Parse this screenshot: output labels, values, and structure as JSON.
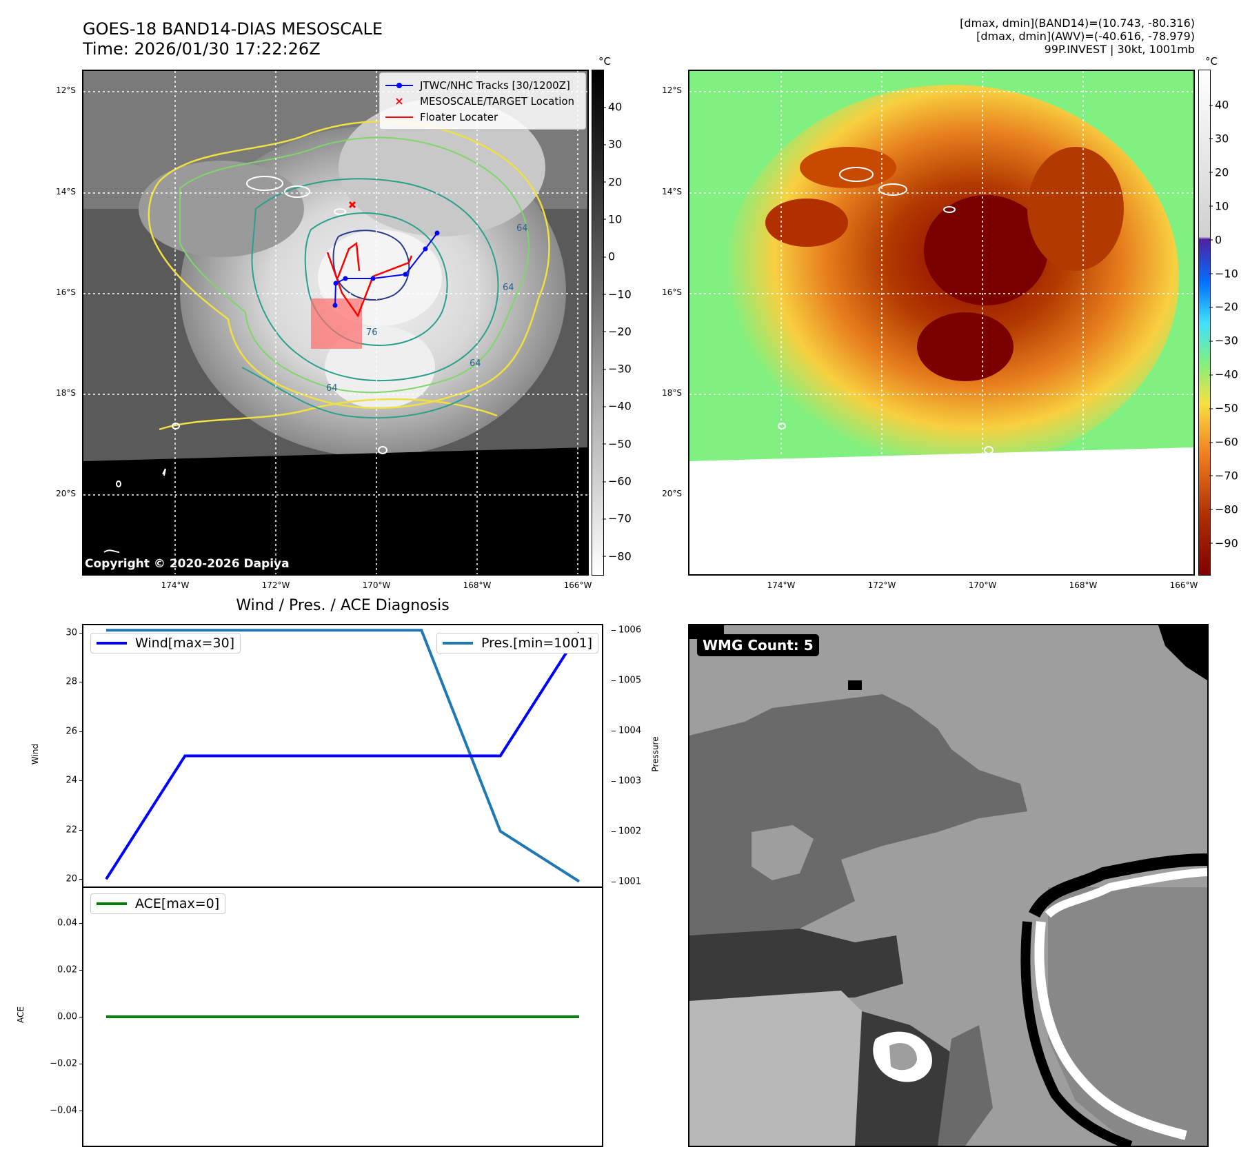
{
  "header": {
    "title_line1": "GOES-18 BAND14-DIAS MESOSCALE",
    "title_line2": "Time: 2026/01/30 17:22:26Z",
    "info_line1": "[dmax, dmin](BAND14)=(10.743, -80.316)",
    "info_line2": "[dmax, dmin](AWV)=(-40.616, -78.979)",
    "info_line3": "99P.INVEST | 30kt, 1001mb"
  },
  "map_axes": {
    "lat_labels": [
      "12°S",
      "14°S",
      "16°S",
      "18°S",
      "20°S"
    ],
    "lon_labels": [
      "174°W",
      "172°W",
      "170°W",
      "168°W",
      "166°W"
    ]
  },
  "ir_panel": {
    "colorbar_unit": "°C",
    "colorbar_ticks": [
      "40",
      "30",
      "20",
      "10",
      "0",
      "−10",
      "−20",
      "−30",
      "−40",
      "−50",
      "−60",
      "−70",
      "−80"
    ],
    "copyright": "Copyright © 2020-2026 Dapiya",
    "legend": [
      {
        "label": "JTWC/NHC Tracks [30/1200Z]",
        "color": "#0000ff"
      },
      {
        "label": "MESOSCALE/TARGET Location",
        "color": "#ff0000"
      },
      {
        "label": "Floater Locater",
        "color": "#ff0000"
      }
    ],
    "contour_labels": [
      "64",
      "64",
      "64",
      "76",
      "64"
    ]
  },
  "awv_panel": {
    "colorbar_unit": "°C",
    "colorbar_ticks": [
      "40",
      "30",
      "20",
      "10",
      "0",
      "−10",
      "−20",
      "−30",
      "−40",
      "−50",
      "−60",
      "−70",
      "−80",
      "−90"
    ]
  },
  "wmg_panel": {
    "label": "WMG Count: 5"
  },
  "chart_data": [
    {
      "type": "line",
      "title": "Wind / Pres. / ACE Diagnosis",
      "x": [
        0,
        1,
        2,
        3,
        4,
        5,
        6
      ],
      "series": [
        {
          "name": "Wind[max=30]",
          "axis": "left",
          "color": "#0000ff",
          "values": [
            20,
            25,
            25,
            25,
            25,
            25,
            30
          ]
        },
        {
          "name": "Pres.[min=1001]",
          "axis": "right",
          "color": "#1f77b4",
          "values": [
            1006,
            1006,
            1006,
            1006,
            1006,
            1002,
            1001
          ]
        }
      ],
      "ylabel": "Wind",
      "ylabel_right": "Pressure",
      "ylim": [
        19.7,
        30.3
      ],
      "ylim_right": [
        1000.9,
        1006.1
      ],
      "yticks": [
        "30",
        "28",
        "26",
        "24",
        "22",
        "20"
      ],
      "yticks_right": [
        "1006",
        "1005",
        "1004",
        "1003",
        "1002",
        "1001"
      ]
    },
    {
      "type": "line",
      "x": [
        0,
        1,
        2,
        3,
        4,
        5,
        6
      ],
      "series": [
        {
          "name": "ACE[max=0]",
          "color": "#008000",
          "values": [
            0,
            0,
            0,
            0,
            0,
            0,
            0
          ]
        }
      ],
      "ylabel": "ACE",
      "ylim": [
        -0.055,
        0.055
      ],
      "yticks": [
        "0.04",
        "0.02",
        "0.00",
        "−0.02",
        "−0.04"
      ]
    }
  ]
}
